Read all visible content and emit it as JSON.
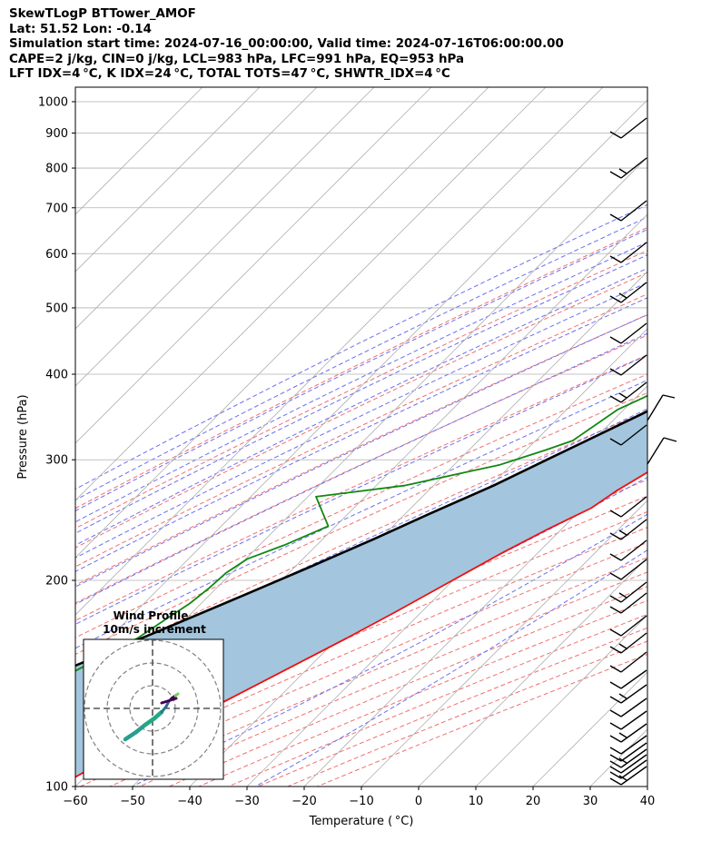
{
  "header": {
    "line1": "SkewTLogP BTTower_AMOF",
    "line2": "Lat: 51.52   Lon: -0.14",
    "line3": "Simulation start time: 2024-07-16_00:00:00, Valid time: 2024-07-16T06:00:00.00",
    "line4": "CAPE=2 j/kg, CIN=0 j/kg, LCL=983 hPa, LFC=991 hPa, EQ=953 hPa",
    "line5": "LFT IDX=4 °C, K IDX=24 °C, TOTAL TOTS=47 °C, SHWTR_IDX=4 °C"
  },
  "chart_data": {
    "type": "line",
    "xlabel": "Temperature ( °C)",
    "ylabel": "Pressure (hPa)",
    "xlim": [
      -60,
      40
    ],
    "ylim": [
      1050,
      100
    ],
    "y_scale": "log",
    "skew": "45 degrees",
    "grid": true,
    "x_ticks": [
      -60,
      -50,
      -40,
      -30,
      -20,
      -10,
      0,
      10,
      20,
      30,
      40
    ],
    "x_tick_labels": [
      "−60",
      "−50",
      "−40",
      "−30",
      "−20",
      "−10",
      "0",
      "10",
      "20",
      "30",
      "40"
    ],
    "y_ticks": [
      1000,
      900,
      800,
      700,
      600,
      500,
      400,
      300,
      200,
      100
    ],
    "y_tick_labels": [
      "1000",
      "900",
      "800",
      "700",
      "600",
      "500",
      "400",
      "300",
      "200",
      "100"
    ],
    "series": [
      {
        "color": "#ee1111",
        "role": "temperature",
        "points": [
          [
            14,
            1000
          ],
          [
            14,
            960
          ],
          [
            14.7,
            930
          ],
          [
            14.5,
            880
          ],
          [
            13.8,
            850
          ],
          [
            11.7,
            780
          ],
          [
            10.5,
            730
          ],
          [
            8.8,
            670
          ],
          [
            7.1,
            620
          ],
          [
            5.7,
            580
          ],
          [
            4.3,
            540
          ],
          [
            2.2,
            500
          ],
          [
            -1.2,
            470
          ],
          [
            -4.2,
            440
          ],
          [
            -6.7,
            410
          ],
          [
            -8,
            390
          ],
          [
            -8.7,
            370
          ],
          [
            -9.4,
            350
          ],
          [
            -11.2,
            330
          ],
          [
            -12.3,
            310
          ],
          [
            -12.5,
            307
          ],
          [
            -14.6,
            290
          ],
          [
            -17.1,
            270
          ],
          [
            -18.5,
            255
          ],
          [
            -22.3,
            238
          ],
          [
            -26.1,
            220
          ],
          [
            -30.1,
            200
          ],
          [
            -34.5,
            180
          ],
          [
            -38.4,
            165
          ],
          [
            -43,
            150
          ],
          [
            -48.1,
            135
          ],
          [
            -53.9,
            120
          ],
          [
            -59,
            110
          ],
          [
            -63,
            100
          ]
        ]
      },
      {
        "color": "#118811",
        "role": "dewpoint",
        "points": [
          [
            11.2,
            985
          ],
          [
            11.2,
            960
          ],
          [
            8.6,
            930
          ],
          [
            6.9,
            900
          ],
          [
            4.3,
            860
          ],
          [
            2.7,
            820
          ],
          [
            1.8,
            800
          ],
          [
            0.1,
            760
          ],
          [
            -2.8,
            730
          ],
          [
            -4.2,
            700
          ],
          [
            -6.2,
            650
          ],
          [
            -8.7,
            590
          ],
          [
            -12.9,
            530
          ],
          [
            -17,
            480
          ],
          [
            -21.9,
            450
          ],
          [
            -24,
            420
          ],
          [
            -25,
            400
          ],
          [
            -28.6,
            370
          ],
          [
            -31.1,
            355
          ],
          [
            -33.5,
            320
          ],
          [
            -36.6,
            310
          ],
          [
            -42,
            295
          ],
          [
            -55.1,
            275
          ],
          [
            -68.6,
            265
          ],
          [
            -61.3,
            240
          ],
          [
            -65.7,
            225
          ],
          [
            -69.7,
            215
          ],
          [
            -71,
            205
          ],
          [
            -71.3,
            195
          ],
          [
            -72,
            185
          ],
          [
            -73.5,
            175
          ],
          [
            -75,
            165
          ],
          [
            -81,
            145
          ],
          [
            -93,
            115
          ],
          [
            -100,
            100
          ]
        ]
      },
      {
        "color": "#000000",
        "role": "parcel",
        "points": [
          [
            15.5,
            1000
          ],
          [
            14.2,
            985
          ],
          [
            12.4,
            930
          ],
          [
            10.9,
            880
          ],
          [
            9.4,
            830
          ],
          [
            7.7,
            780
          ],
          [
            5.2,
            720
          ],
          [
            2.5,
            660
          ],
          [
            -0.7,
            600
          ],
          [
            -4.2,
            550
          ],
          [
            -8.4,
            500
          ],
          [
            -13.3,
            450
          ],
          [
            -19.1,
            400
          ],
          [
            -26.1,
            350
          ],
          [
            -34.7,
            300
          ],
          [
            -39.5,
            275
          ],
          [
            -45.8,
            250
          ],
          [
            -51,
            230
          ],
          [
            -57.1,
            210
          ],
          [
            -64.1,
            190
          ],
          [
            -72,
            170
          ],
          [
            -81.2,
            150
          ],
          [
            -92,
            130
          ],
          [
            -98.7,
            120
          ],
          [
            -105.6,
            110
          ],
          [
            -110,
            100
          ]
        ]
      }
    ],
    "wind_barbs_side": "right",
    "wind_profile_inset": {
      "title": "Wind Profile",
      "subtitle": "10m/s increment",
      "rings": 3,
      "colormap": "viridis"
    }
  },
  "colors": {
    "background": "#ffffff",
    "cape_fill": "#a3c5dd",
    "dry_adiabat": "#f07070",
    "moist_adiabat": "#6b6ff0",
    "mixing_ratio": "#b040b0",
    "isotherm_grid": "#b0b0b0"
  }
}
